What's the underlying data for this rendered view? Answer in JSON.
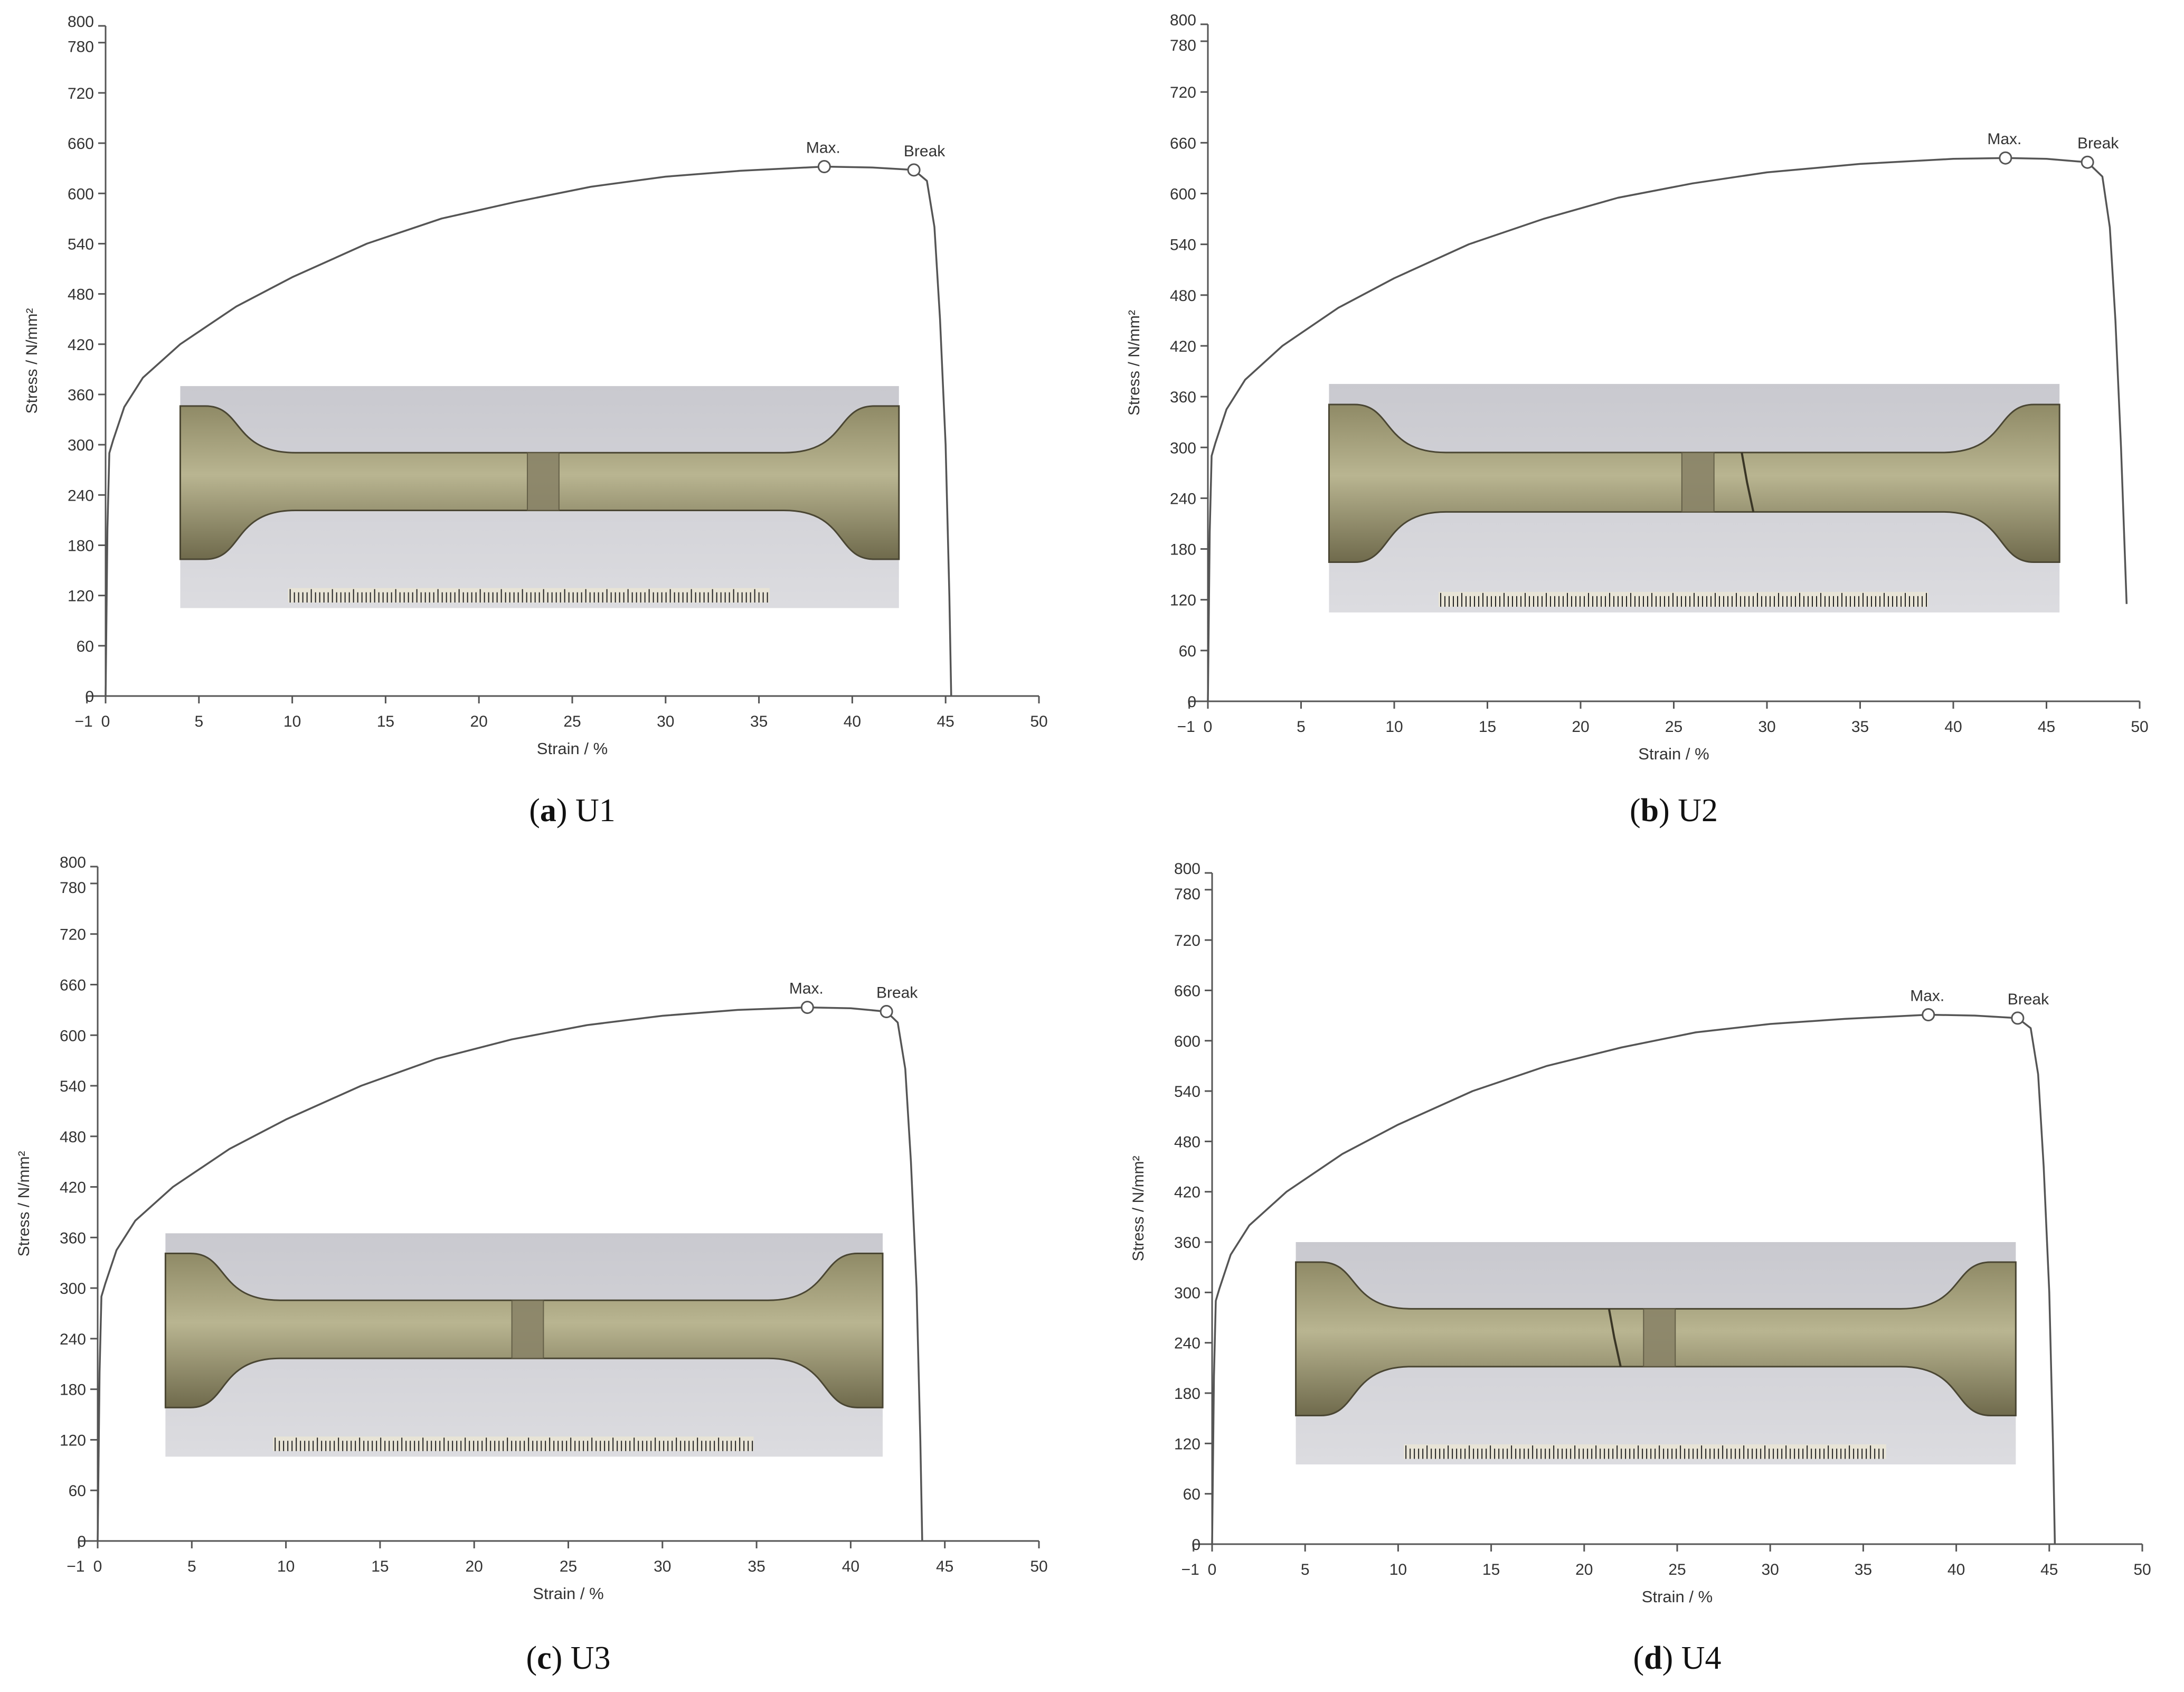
{
  "chart_data": [
    {
      "type": "line",
      "caption_letter": "a",
      "caption_name": "U1",
      "xlabel": "Strain / %",
      "ylabel": "Stress / N/mm²",
      "xlim": [
        -1,
        50
      ],
      "ylim": [
        0,
        800
      ],
      "x_ticks": [
        -1,
        0,
        5,
        10,
        15,
        20,
        25,
        30,
        35,
        40,
        45,
        50
      ],
      "x_tick_labels": [
        "−1",
        "0",
        "5",
        "10",
        "15",
        "20",
        "25",
        "30",
        "35",
        "40",
        "45",
        "50"
      ],
      "y_ticks": [
        0,
        60,
        120,
        180,
        240,
        300,
        360,
        420,
        480,
        540,
        600,
        660,
        720,
        780,
        800
      ],
      "y_tick_labels": [
        "0",
        "60",
        "120",
        "180",
        "240",
        "300",
        "360",
        "420",
        "480",
        "540",
        "600",
        "660",
        "720",
        "780",
        "800"
      ],
      "grid": false,
      "series": [
        {
          "x": [
            0,
            0.1,
            0.2,
            0.4,
            1,
            2,
            4,
            7,
            10,
            14,
            18,
            22,
            26,
            30,
            34,
            38.5,
            41,
            43.3,
            44,
            44.4,
            44.7,
            45.0,
            45.2,
            45.3
          ],
          "y": [
            0,
            200,
            290,
            305,
            345,
            380,
            420,
            465,
            500,
            540,
            570,
            590,
            608,
            620,
            627,
            632,
            631,
            628,
            615,
            560,
            450,
            300,
            120,
            0
          ]
        }
      ],
      "annotations": [
        {
          "text": "Max.",
          "x": 38.5,
          "y": 632
        },
        {
          "text": "Break",
          "x": 43.3,
          "y": 628
        }
      ],
      "inset": {
        "x": [
          4,
          42.5
        ],
        "y": [
          105,
          370
        ],
        "dark_fracture": false
      }
    },
    {
      "type": "line",
      "caption_letter": "b",
      "caption_name": "U2",
      "xlabel": "Strain / %",
      "ylabel": "Stress / N/mm²",
      "xlim": [
        -1,
        50
      ],
      "ylim": [
        0,
        800
      ],
      "x_ticks": [
        -1,
        0,
        5,
        10,
        15,
        20,
        25,
        30,
        35,
        40,
        45,
        50
      ],
      "x_tick_labels": [
        "−1",
        "0",
        "5",
        "10",
        "15",
        "20",
        "25",
        "30",
        "35",
        "40",
        "45",
        "50"
      ],
      "y_ticks": [
        0,
        60,
        120,
        180,
        240,
        300,
        360,
        420,
        480,
        540,
        600,
        660,
        720,
        780,
        800
      ],
      "y_tick_labels": [
        "0",
        "60",
        "120",
        "180",
        "240",
        "300",
        "360",
        "420",
        "480",
        "540",
        "600",
        "660",
        "720",
        "780",
        "800"
      ],
      "grid": false,
      "series": [
        {
          "x": [
            0,
            0.1,
            0.2,
            0.4,
            1,
            2,
            4,
            7,
            10,
            14,
            18,
            22,
            26,
            30,
            35,
            40,
            42.8,
            45,
            47.2,
            48,
            48.4,
            48.7,
            49.0,
            49.3
          ],
          "y": [
            0,
            200,
            290,
            305,
            345,
            380,
            420,
            465,
            500,
            540,
            570,
            595,
            612,
            625,
            635,
            641,
            642,
            641,
            637,
            620,
            560,
            450,
            300,
            115
          ]
        }
      ],
      "annotations": [
        {
          "text": "Max.",
          "x": 42.8,
          "y": 642
        },
        {
          "text": "Break",
          "x": 47.2,
          "y": 637
        }
      ],
      "inset": {
        "x": [
          6.5,
          45.7
        ],
        "y": [
          105,
          375
        ],
        "dark_fracture": true
      }
    },
    {
      "type": "line",
      "caption_letter": "c",
      "caption_name": "U3",
      "xlabel": "Strain / %",
      "ylabel": "Stress / N/mm²",
      "xlim": [
        -1,
        50
      ],
      "ylim": [
        0,
        800
      ],
      "x_ticks": [
        -1,
        0,
        5,
        10,
        15,
        20,
        25,
        30,
        35,
        40,
        45,
        50
      ],
      "x_tick_labels": [
        "−1",
        "0",
        "5",
        "10",
        "15",
        "20",
        "25",
        "30",
        "35",
        "40",
        "45",
        "50"
      ],
      "y_ticks": [
        0,
        60,
        120,
        180,
        240,
        300,
        360,
        420,
        480,
        540,
        600,
        660,
        720,
        780,
        800
      ],
      "y_tick_labels": [
        "0",
        "60",
        "120",
        "180",
        "240",
        "300",
        "360",
        "420",
        "480",
        "540",
        "600",
        "660",
        "720",
        "780",
        "800"
      ],
      "grid": false,
      "series": [
        {
          "x": [
            0,
            0.1,
            0.2,
            0.4,
            1,
            2,
            4,
            7,
            10,
            14,
            18,
            22,
            26,
            30,
            34,
            37.7,
            40,
            41.9,
            42.5,
            42.9,
            43.2,
            43.5,
            43.7,
            43.8
          ],
          "y": [
            0,
            200,
            290,
            305,
            345,
            380,
            420,
            465,
            500,
            540,
            572,
            595,
            612,
            623,
            630,
            633,
            632,
            628,
            615,
            560,
            450,
            300,
            120,
            0
          ]
        }
      ],
      "annotations": [
        {
          "text": "Max.",
          "x": 37.7,
          "y": 633
        },
        {
          "text": "Break",
          "x": 41.9,
          "y": 628
        }
      ],
      "inset": {
        "x": [
          3.6,
          41.7
        ],
        "y": [
          100,
          365
        ],
        "dark_fracture": false
      }
    },
    {
      "type": "line",
      "caption_letter": "d",
      "caption_name": "U4",
      "xlabel": "Strain / %",
      "ylabel": "Stress / N/mm²",
      "xlim": [
        -1,
        50
      ],
      "ylim": [
        0,
        800
      ],
      "x_ticks": [
        -1,
        0,
        5,
        10,
        15,
        20,
        25,
        30,
        35,
        40,
        45,
        50
      ],
      "x_tick_labels": [
        "−1",
        "0",
        "5",
        "10",
        "15",
        "20",
        "25",
        "30",
        "35",
        "40",
        "45",
        "50"
      ],
      "y_ticks": [
        0,
        60,
        120,
        180,
        240,
        300,
        360,
        420,
        480,
        540,
        600,
        660,
        720,
        780,
        800
      ],
      "y_tick_labels": [
        "0",
        "60",
        "120",
        "180",
        "240",
        "300",
        "360",
        "420",
        "480",
        "540",
        "600",
        "660",
        "720",
        "780",
        "800"
      ],
      "grid": false,
      "series": [
        {
          "x": [
            0,
            0.1,
            0.2,
            0.4,
            1,
            2,
            4,
            7,
            10,
            14,
            18,
            22,
            26,
            30,
            34,
            38.5,
            41,
            43.3,
            44,
            44.4,
            44.7,
            45.0,
            45.2,
            45.3
          ],
          "y": [
            0,
            200,
            290,
            305,
            345,
            380,
            420,
            465,
            500,
            540,
            570,
            592,
            610,
            620,
            626,
            631,
            630,
            627,
            615,
            560,
            450,
            300,
            120,
            0
          ]
        }
      ],
      "annotations": [
        {
          "text": "Max.",
          "x": 38.5,
          "y": 631
        },
        {
          "text": "Break",
          "x": 43.3,
          "y": 627
        }
      ],
      "inset": {
        "x": [
          4.5,
          43.2
        ],
        "y": [
          95,
          360
        ],
        "dark_fracture": true
      }
    }
  ]
}
